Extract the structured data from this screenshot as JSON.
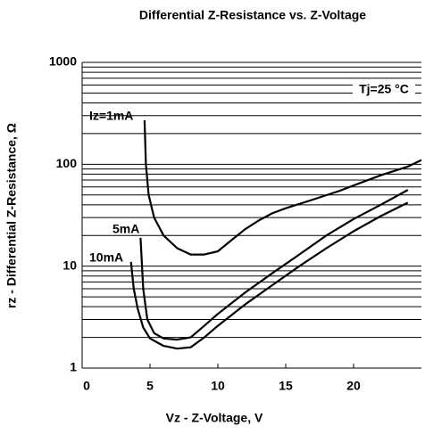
{
  "chart_data": {
    "type": "line",
    "title": "Differential Z-Resistance vs. Z-Voltage",
    "x_label": "Vz -  Z-Voltage, V",
    "y_label": "rz - Differential Z-Resistance, Ω",
    "annotation": "Tj=25 °C",
    "log_y": true,
    "grid": true,
    "xlim": [
      0,
      25
    ],
    "xticks": [
      0,
      5,
      10,
      15,
      20
    ],
    "ylim": [
      1,
      1000
    ],
    "yticks": [
      1,
      10,
      100,
      1000
    ],
    "y_minor_ticks": [
      2,
      3,
      4,
      5,
      6,
      7,
      8,
      9,
      20,
      30,
      40,
      50,
      60,
      70,
      80,
      90,
      200,
      300,
      400,
      500,
      600,
      700,
      800,
      900
    ],
    "series": [
      {
        "name": "Iz=1mA",
        "color": "#000000",
        "x": [
          4.6,
          4.7,
          4.9,
          5.3,
          6,
          7,
          8,
          9,
          10,
          11,
          12,
          13,
          14,
          15,
          17,
          19,
          20,
          22,
          24,
          25
        ],
        "values": [
          270,
          100,
          50,
          30,
          20,
          15,
          13,
          13,
          14,
          18,
          23,
          28,
          33,
          37,
          45,
          55,
          62,
          78,
          95,
          110
        ]
      },
      {
        "name": "5mA",
        "color": "#000000",
        "x": [
          4.3,
          4.5,
          4.8,
          5.3,
          6,
          7,
          8,
          9,
          10,
          12,
          14,
          16,
          18,
          20,
          22,
          24
        ],
        "values": [
          19,
          6,
          3,
          2.2,
          1.95,
          1.9,
          2.0,
          2.6,
          3.4,
          5.5,
          8.5,
          13,
          20,
          29,
          40,
          56
        ]
      },
      {
        "name": "10mA",
        "color": "#000000",
        "x": [
          3.6,
          3.8,
          4.1,
          4.5,
          5,
          6,
          7,
          8,
          9,
          10,
          12,
          14,
          16,
          18,
          20,
          22,
          24
        ],
        "values": [
          11,
          6,
          3.8,
          2.5,
          1.95,
          1.65,
          1.55,
          1.6,
          2.0,
          2.6,
          4.2,
          6.5,
          10,
          15,
          22,
          31,
          42
        ]
      }
    ]
  }
}
